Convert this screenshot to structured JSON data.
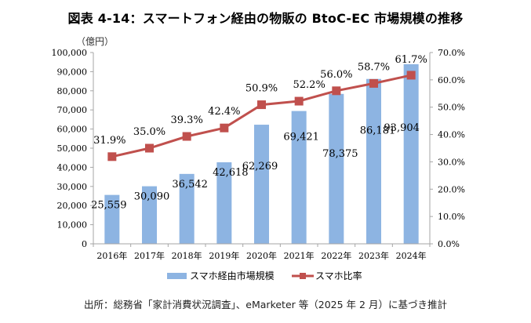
{
  "title": "図表 4-14：スマートフォン経由の物販の BtoC-EC 市場規模の推移",
  "unit_label": "（億円）",
  "source": "出所：総務省「家計消費状況調査」、eMarketer 等（2025 年 2 月）に基づき推計",
  "colors": {
    "bar": "#8DB4E2",
    "line": "#C0504D",
    "axis": "#A6A6A6"
  },
  "chart_data": {
    "type": "bar",
    "title": "図表 4-14：スマートフォン経由の物販の BtoC-EC 市場規模の推移",
    "xlabel": "",
    "ylabel": "（億円）",
    "categories": [
      "2016年",
      "2017年",
      "2018年",
      "2019年",
      "2020年",
      "2021年",
      "2022年",
      "2023年",
      "2024年"
    ],
    "series": [
      {
        "name": "スマホ経由市場規模",
        "type": "bar",
        "axis": "left",
        "values": [
          25559,
          30090,
          36542,
          42618,
          62269,
          69421,
          78375,
          86181,
          93904
        ],
        "labels": [
          "25,559",
          "30,090",
          "36,542",
          "42,618",
          "62,269",
          "69,421",
          "78,375",
          "86,181",
          "93,904"
        ]
      },
      {
        "name": "スマホ比率",
        "type": "line",
        "axis": "right",
        "values": [
          31.9,
          35.0,
          39.3,
          42.4,
          50.9,
          52.2,
          56.0,
          58.7,
          61.7
        ],
        "labels": [
          "31.9%",
          "35.0%",
          "39.3%",
          "42.4%",
          "50.9%",
          "52.2%",
          "56.0%",
          "58.7%",
          "61.7%"
        ]
      }
    ],
    "ylim": [
      0,
      100000
    ],
    "y_ticks": [
      "0",
      "10,000",
      "20,000",
      "30,000",
      "40,000",
      "50,000",
      "60,000",
      "70,000",
      "80,000",
      "90,000",
      "100,000"
    ],
    "y2lim": [
      0,
      70
    ],
    "y2_ticks": [
      "0.0%",
      "10.0%",
      "20.0%",
      "30.0%",
      "40.0%",
      "50.0%",
      "60.0%",
      "70.0%"
    ],
    "grid": false,
    "legend": {
      "position": "bottom",
      "entries": [
        "スマホ経由市場規模",
        "スマホ比率"
      ]
    }
  }
}
